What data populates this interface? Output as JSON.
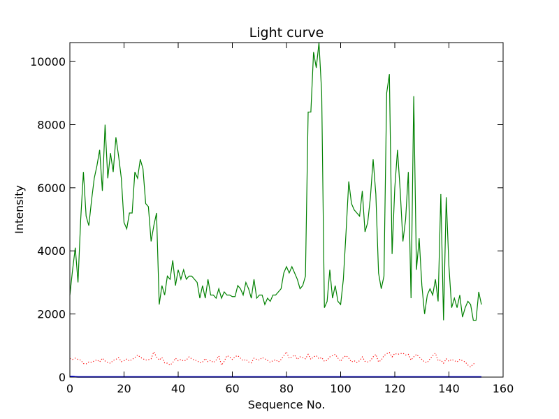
{
  "chart_data": {
    "type": "line",
    "title": "Light curve",
    "xlabel": "Sequence No.",
    "ylabel": "Intensity",
    "xlim": [
      0,
      160
    ],
    "ylim": [
      0,
      10600
    ],
    "xticks": [
      0,
      20,
      40,
      60,
      80,
      100,
      120,
      140,
      160
    ],
    "yticks": [
      0,
      2000,
      4000,
      6000,
      8000,
      10000
    ],
    "grid": false,
    "legend": "none",
    "series": [
      {
        "color": "#008000",
        "style": "solid",
        "values": [
          2600,
          3400,
          4100,
          3000,
          5000,
          6500,
          5100,
          4800,
          5600,
          6300,
          6700,
          7200,
          5900,
          8000,
          6300,
          7100,
          6500,
          7600,
          7000,
          6300,
          4900,
          4700,
          5200,
          5200,
          6500,
          6300,
          6900,
          6600,
          5500,
          5400,
          4300,
          4800,
          5200,
          2300,
          2900,
          2600,
          3200,
          3100,
          3700,
          2900,
          3400,
          3100,
          3400,
          3100,
          3200,
          3200,
          3100,
          3000,
          2500,
          2900,
          2500,
          3100,
          2600,
          2600,
          2500,
          2800,
          2500,
          2700,
          2600,
          2600,
          2550,
          2550,
          2900,
          2800,
          2600,
          3000,
          2800,
          2500,
          3100,
          2500,
          2600,
          2600,
          2300,
          2500,
          2400,
          2600,
          2600,
          2700,
          2800,
          3300,
          3500,
          3300,
          3500,
          3300,
          3100,
          2800,
          2900,
          3200,
          8400,
          8400,
          10300,
          9800,
          10600,
          9000,
          2200,
          2400,
          3400,
          2500,
          2900,
          2400,
          2300,
          3100,
          4600,
          6200,
          5500,
          5300,
          5200,
          5100,
          5900,
          4600,
          4900,
          5700,
          6900,
          5800,
          3300,
          2800,
          3200,
          9000,
          9600,
          3900,
          6000,
          7200,
          5900,
          4300,
          5000,
          6500,
          2500,
          8900,
          3400,
          4400,
          2900,
          2000,
          2600,
          2800,
          2600,
          3100,
          2400,
          5800,
          1800,
          5700,
          3500,
          2200,
          2500,
          2200,
          2600,
          1900,
          2200,
          2400,
          2300,
          1800,
          1800,
          2700,
          2300
        ]
      },
      {
        "color": "#ff0000",
        "style": "dotted",
        "values": [
          590,
          560,
          600,
          560,
          540,
          430,
          420,
          480,
          470,
          510,
          550,
          480,
          600,
          510,
          460,
          440,
          530,
          560,
          620,
          490,
          520,
          570,
          510,
          560,
          620,
          700,
          630,
          580,
          540,
          550,
          580,
          800,
          640,
          540,
          620,
          450,
          440,
          380,
          460,
          600,
          520,
          560,
          510,
          540,
          640,
          580,
          540,
          520,
          450,
          480,
          590,
          490,
          530,
          460,
          540,
          670,
          380,
          500,
          680,
          640,
          560,
          650,
          680,
          600,
          520,
          560,
          480,
          450,
          600,
          560,
          540,
          620,
          580,
          530,
          470,
          520,
          550,
          480,
          560,
          680,
          800,
          600,
          640,
          700,
          560,
          640,
          620,
          580,
          720,
          560,
          640,
          680,
          580,
          620,
          500,
          530,
          640,
          680,
          720,
          600,
          500,
          620,
          680,
          600,
          480,
          520,
          460,
          520,
          640,
          500,
          480,
          520,
          640,
          720,
          480,
          540,
          680,
          740,
          780,
          640,
          750,
          720,
          740,
          760,
          700,
          720,
          540,
          640,
          720,
          640,
          560,
          480,
          460,
          580,
          680,
          760,
          520,
          540,
          440,
          580,
          500,
          560,
          520,
          480,
          560,
          520,
          480,
          380,
          320,
          420,
          440
        ]
      },
      {
        "color": "#0000ff",
        "style": "solid",
        "values": [
          20,
          20,
          10,
          5,
          5,
          5,
          5,
          5,
          5,
          5,
          5,
          5,
          5,
          5,
          5,
          5,
          5,
          5,
          5,
          5,
          5,
          5,
          5,
          5,
          5,
          5,
          5,
          5,
          5,
          5,
          5,
          5,
          5,
          5,
          5,
          5,
          5,
          5,
          5,
          5,
          5,
          5,
          5,
          5,
          5,
          5,
          5,
          5,
          5,
          5,
          5,
          5,
          5,
          5,
          5,
          5,
          5,
          5,
          5,
          5,
          5,
          5,
          5,
          5,
          5,
          5,
          5,
          5,
          5,
          5,
          5,
          5,
          5,
          5,
          5,
          5,
          5,
          5,
          5,
          5,
          5,
          5,
          5,
          5,
          5,
          5,
          5,
          5,
          5,
          5,
          5,
          5,
          5,
          5,
          5,
          5,
          5,
          5,
          5,
          5,
          5,
          5,
          5,
          5,
          5,
          5,
          5,
          5,
          5,
          5,
          5,
          5,
          5,
          5,
          5,
          5,
          5,
          5,
          5,
          5,
          5,
          5,
          5,
          5,
          5,
          5,
          5,
          5,
          5,
          5,
          5,
          5,
          5,
          5,
          5,
          5,
          5,
          5,
          5,
          5,
          5,
          5,
          5,
          5,
          5,
          5,
          5,
          5,
          5,
          5,
          5,
          5,
          5
        ]
      }
    ]
  }
}
